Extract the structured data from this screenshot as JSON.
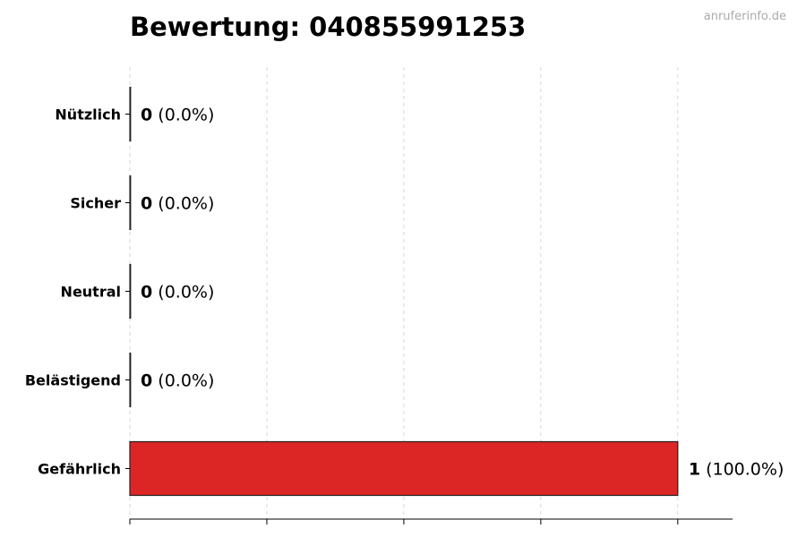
{
  "watermark": "anruferinfo.de",
  "chart_data": {
    "type": "bar",
    "orientation": "horizontal",
    "title": "Bewertung: 040855991253",
    "categories": [
      "Nützlich",
      "Sicher",
      "Neutral",
      "Belästigend",
      "Gefährlich"
    ],
    "values": [
      0,
      0,
      0,
      0,
      1
    ],
    "value_labels": [
      "0",
      "0",
      "0",
      "0",
      "1"
    ],
    "percent_labels": [
      "(0.0%)",
      "(0.0%)",
      "(0.0%)",
      "(0.0%)",
      "(100.0%)"
    ],
    "bar_color": "#dc2626",
    "xlim": [
      0,
      1.1
    ],
    "xticks": [
      0,
      0.25,
      0.5,
      0.75,
      1
    ],
    "xtick_labels_shown": false,
    "grid": "vertical dashed",
    "xlabel": "",
    "ylabel": ""
  }
}
